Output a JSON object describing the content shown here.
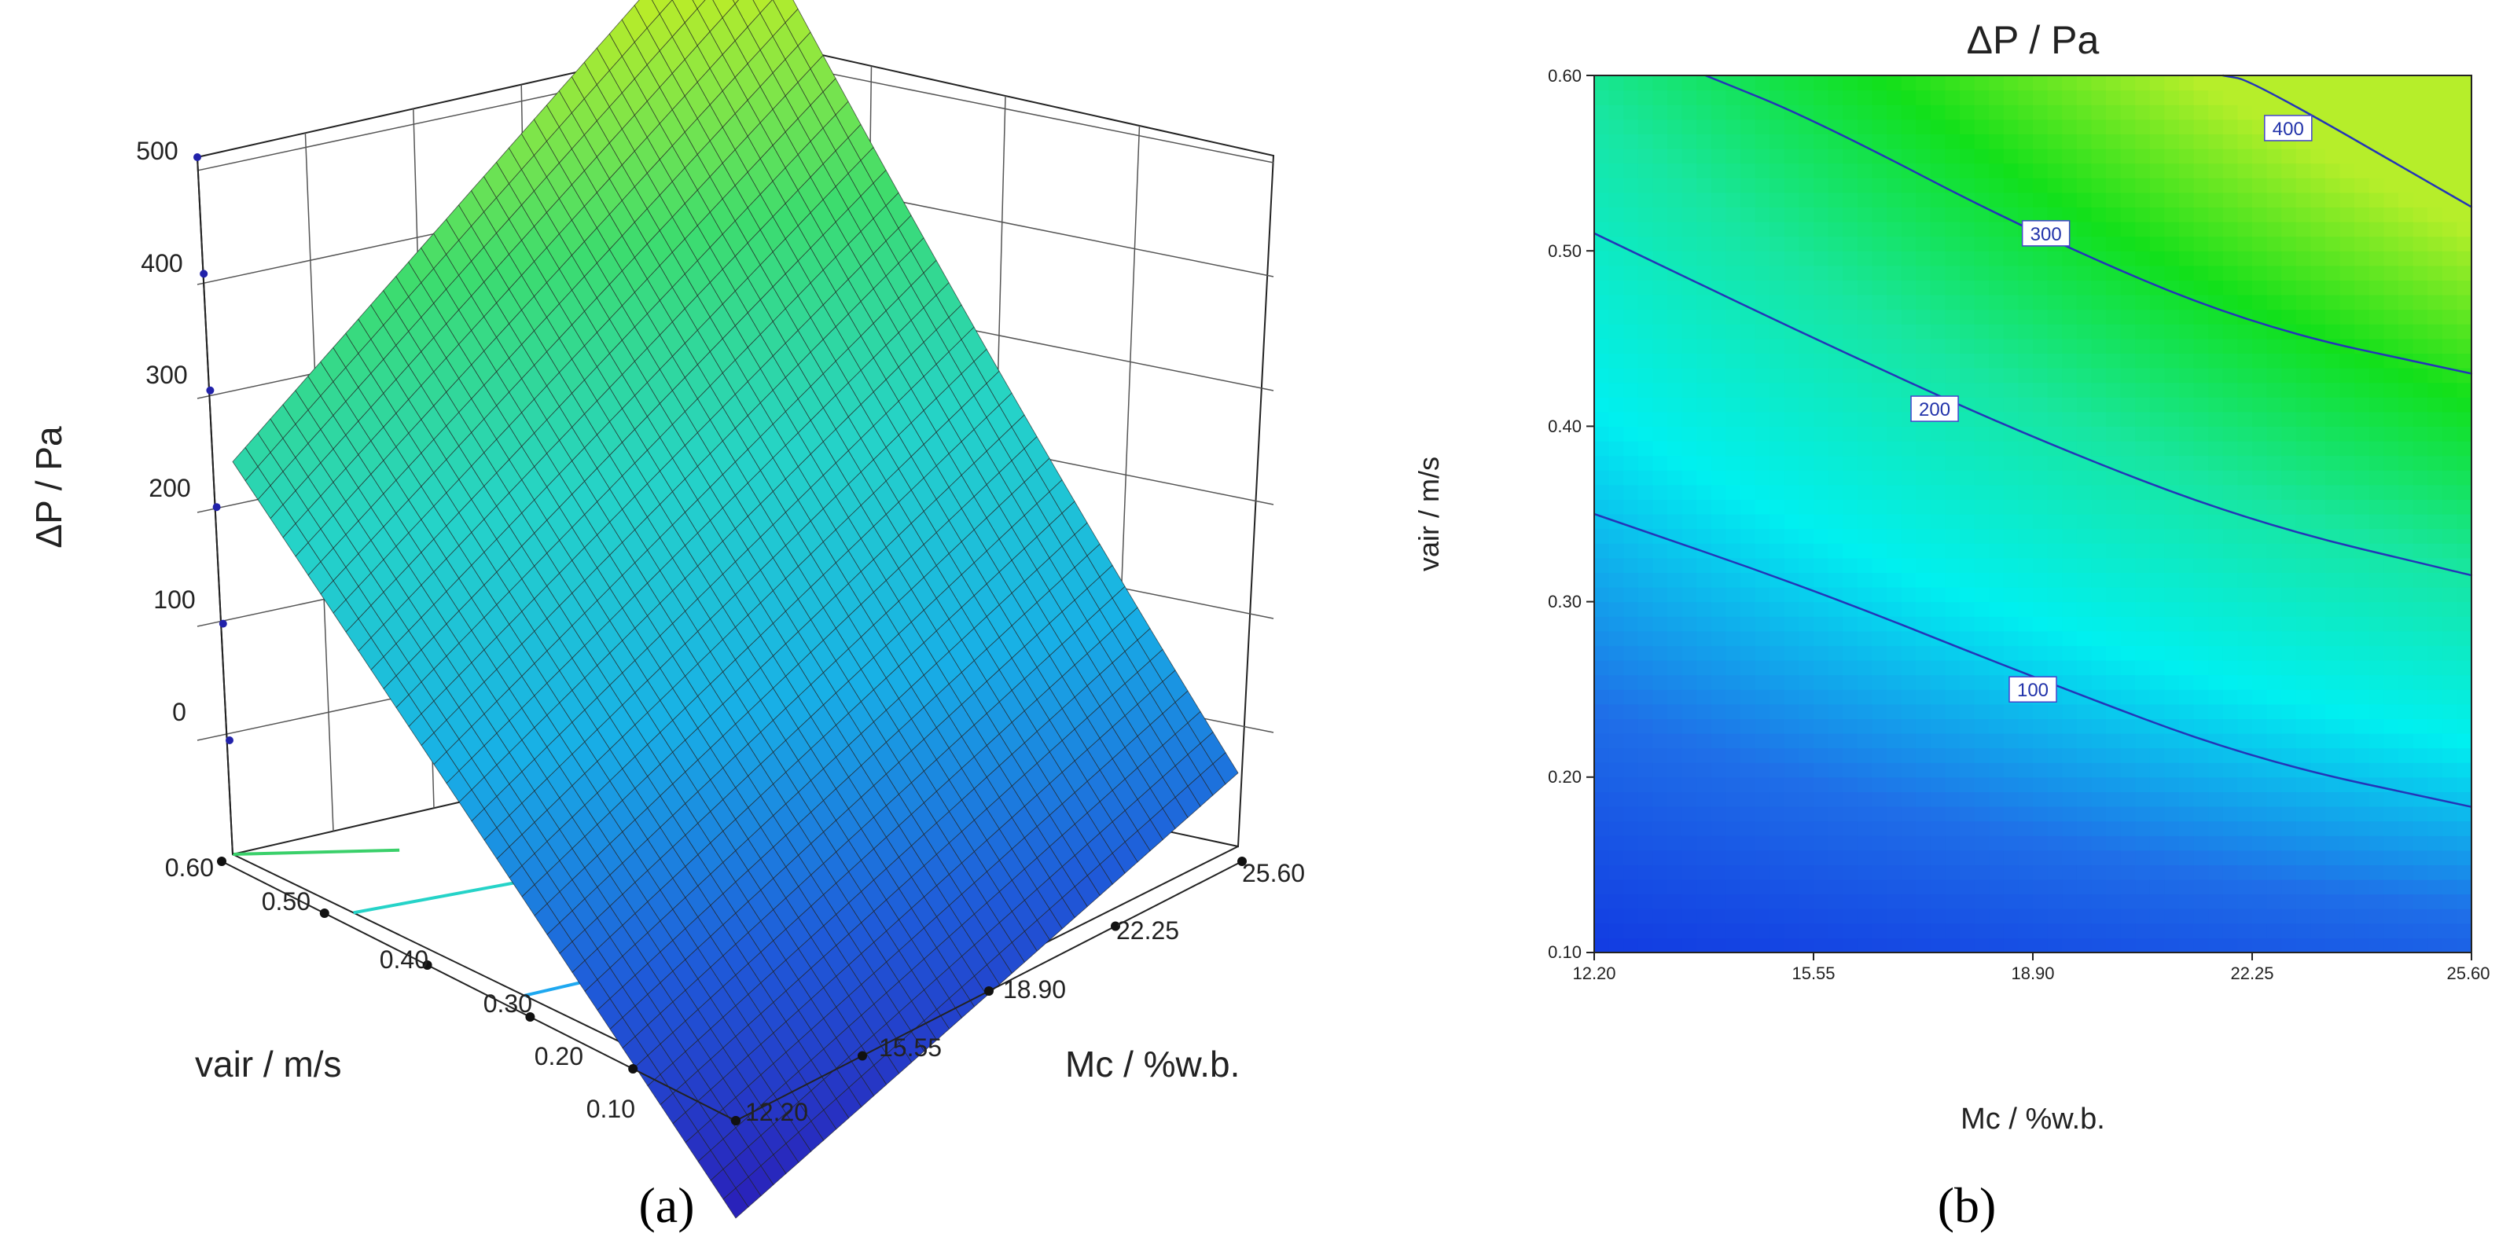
{
  "chart_data": [
    {
      "type": "surface",
      "panel_label": "(a)",
      "zlabel": "ΔP / Pa",
      "xlabel": "Mc / %w.b.",
      "ylabel": "vair / m/s",
      "x_ticks": [
        "12.20",
        "15.55",
        "18.90",
        "22.25",
        "25.60"
      ],
      "y_ticks": [
        "0.10",
        "0.20",
        "0.30",
        "0.40",
        "0.50",
        "0.60"
      ],
      "z_ticks": [
        "0",
        "100",
        "200",
        "300",
        "400",
        "500"
      ],
      "xlim": [
        12.2,
        25.6
      ],
      "ylim": [
        0.1,
        0.6
      ],
      "zlim": [
        0,
        500
      ],
      "corner_values": [
        {
          "Mc": 12.2,
          "vair": 0.1,
          "dP": -200
        },
        {
          "Mc": 25.6,
          "vair": 0.1,
          "dP": -30
        },
        {
          "Mc": 12.2,
          "vair": 0.6,
          "dP": 250
        },
        {
          "Mc": 25.6,
          "vair": 0.6,
          "dP": 470
        }
      ],
      "colormap": [
        "#2a1fb8",
        "#1f5ad9",
        "#18b0e6",
        "#25d3c8",
        "#3ddc6e",
        "#b7ec2a"
      ]
    },
    {
      "type": "contour",
      "panel_label": "(b)",
      "title": "ΔP / Pa",
      "xlabel": "Mc / %w.b.",
      "ylabel": "vair / m/s",
      "x_ticks": [
        "12.20",
        "15.55",
        "18.90",
        "22.25",
        "25.60"
      ],
      "y_ticks": [
        "0.10",
        "0.20",
        "0.30",
        "0.40",
        "0.50",
        "0.60"
      ],
      "xlim": [
        12.2,
        25.6
      ],
      "ylim": [
        0.1,
        0.6
      ],
      "contours": [
        {
          "level": "100",
          "points": [
            [
              12.2,
              0.35
            ],
            [
              15.55,
              0.307
            ],
            [
              18.9,
              0.257
            ],
            [
              22.25,
              0.21
            ],
            [
              25.6,
              0.183
            ]
          ]
        },
        {
          "level": "200",
          "points": [
            [
              12.2,
              0.51
            ],
            [
              15.55,
              0.45
            ],
            [
              18.9,
              0.393
            ],
            [
              22.25,
              0.345
            ],
            [
              25.6,
              0.315
            ]
          ]
        },
        {
          "level": "300",
          "points": [
            [
              13.9,
              0.6
            ],
            [
              15.55,
              0.575
            ],
            [
              18.9,
              0.51
            ],
            [
              22.25,
              0.457
            ],
            [
              25.6,
              0.43
            ]
          ]
        },
        {
          "level": "400",
          "points": [
            [
              21.8,
              0.6
            ],
            [
              22.25,
              0.597
            ],
            [
              25.6,
              0.525
            ]
          ]
        }
      ],
      "label_positions": [
        {
          "level": "100",
          "Mc": 18.9,
          "vair": 0.25
        },
        {
          "level": "200",
          "Mc": 17.4,
          "vair": 0.41
        },
        {
          "level": "300",
          "Mc": 19.1,
          "vair": 0.51
        },
        {
          "level": "400",
          "Mc": 22.8,
          "vair": 0.57
        }
      ],
      "colormap": [
        "#0f2fe0",
        "#1f6fe8",
        "#00f0f0",
        "#18e6a0",
        "#12e01a",
        "#b6ee2a"
      ]
    }
  ]
}
